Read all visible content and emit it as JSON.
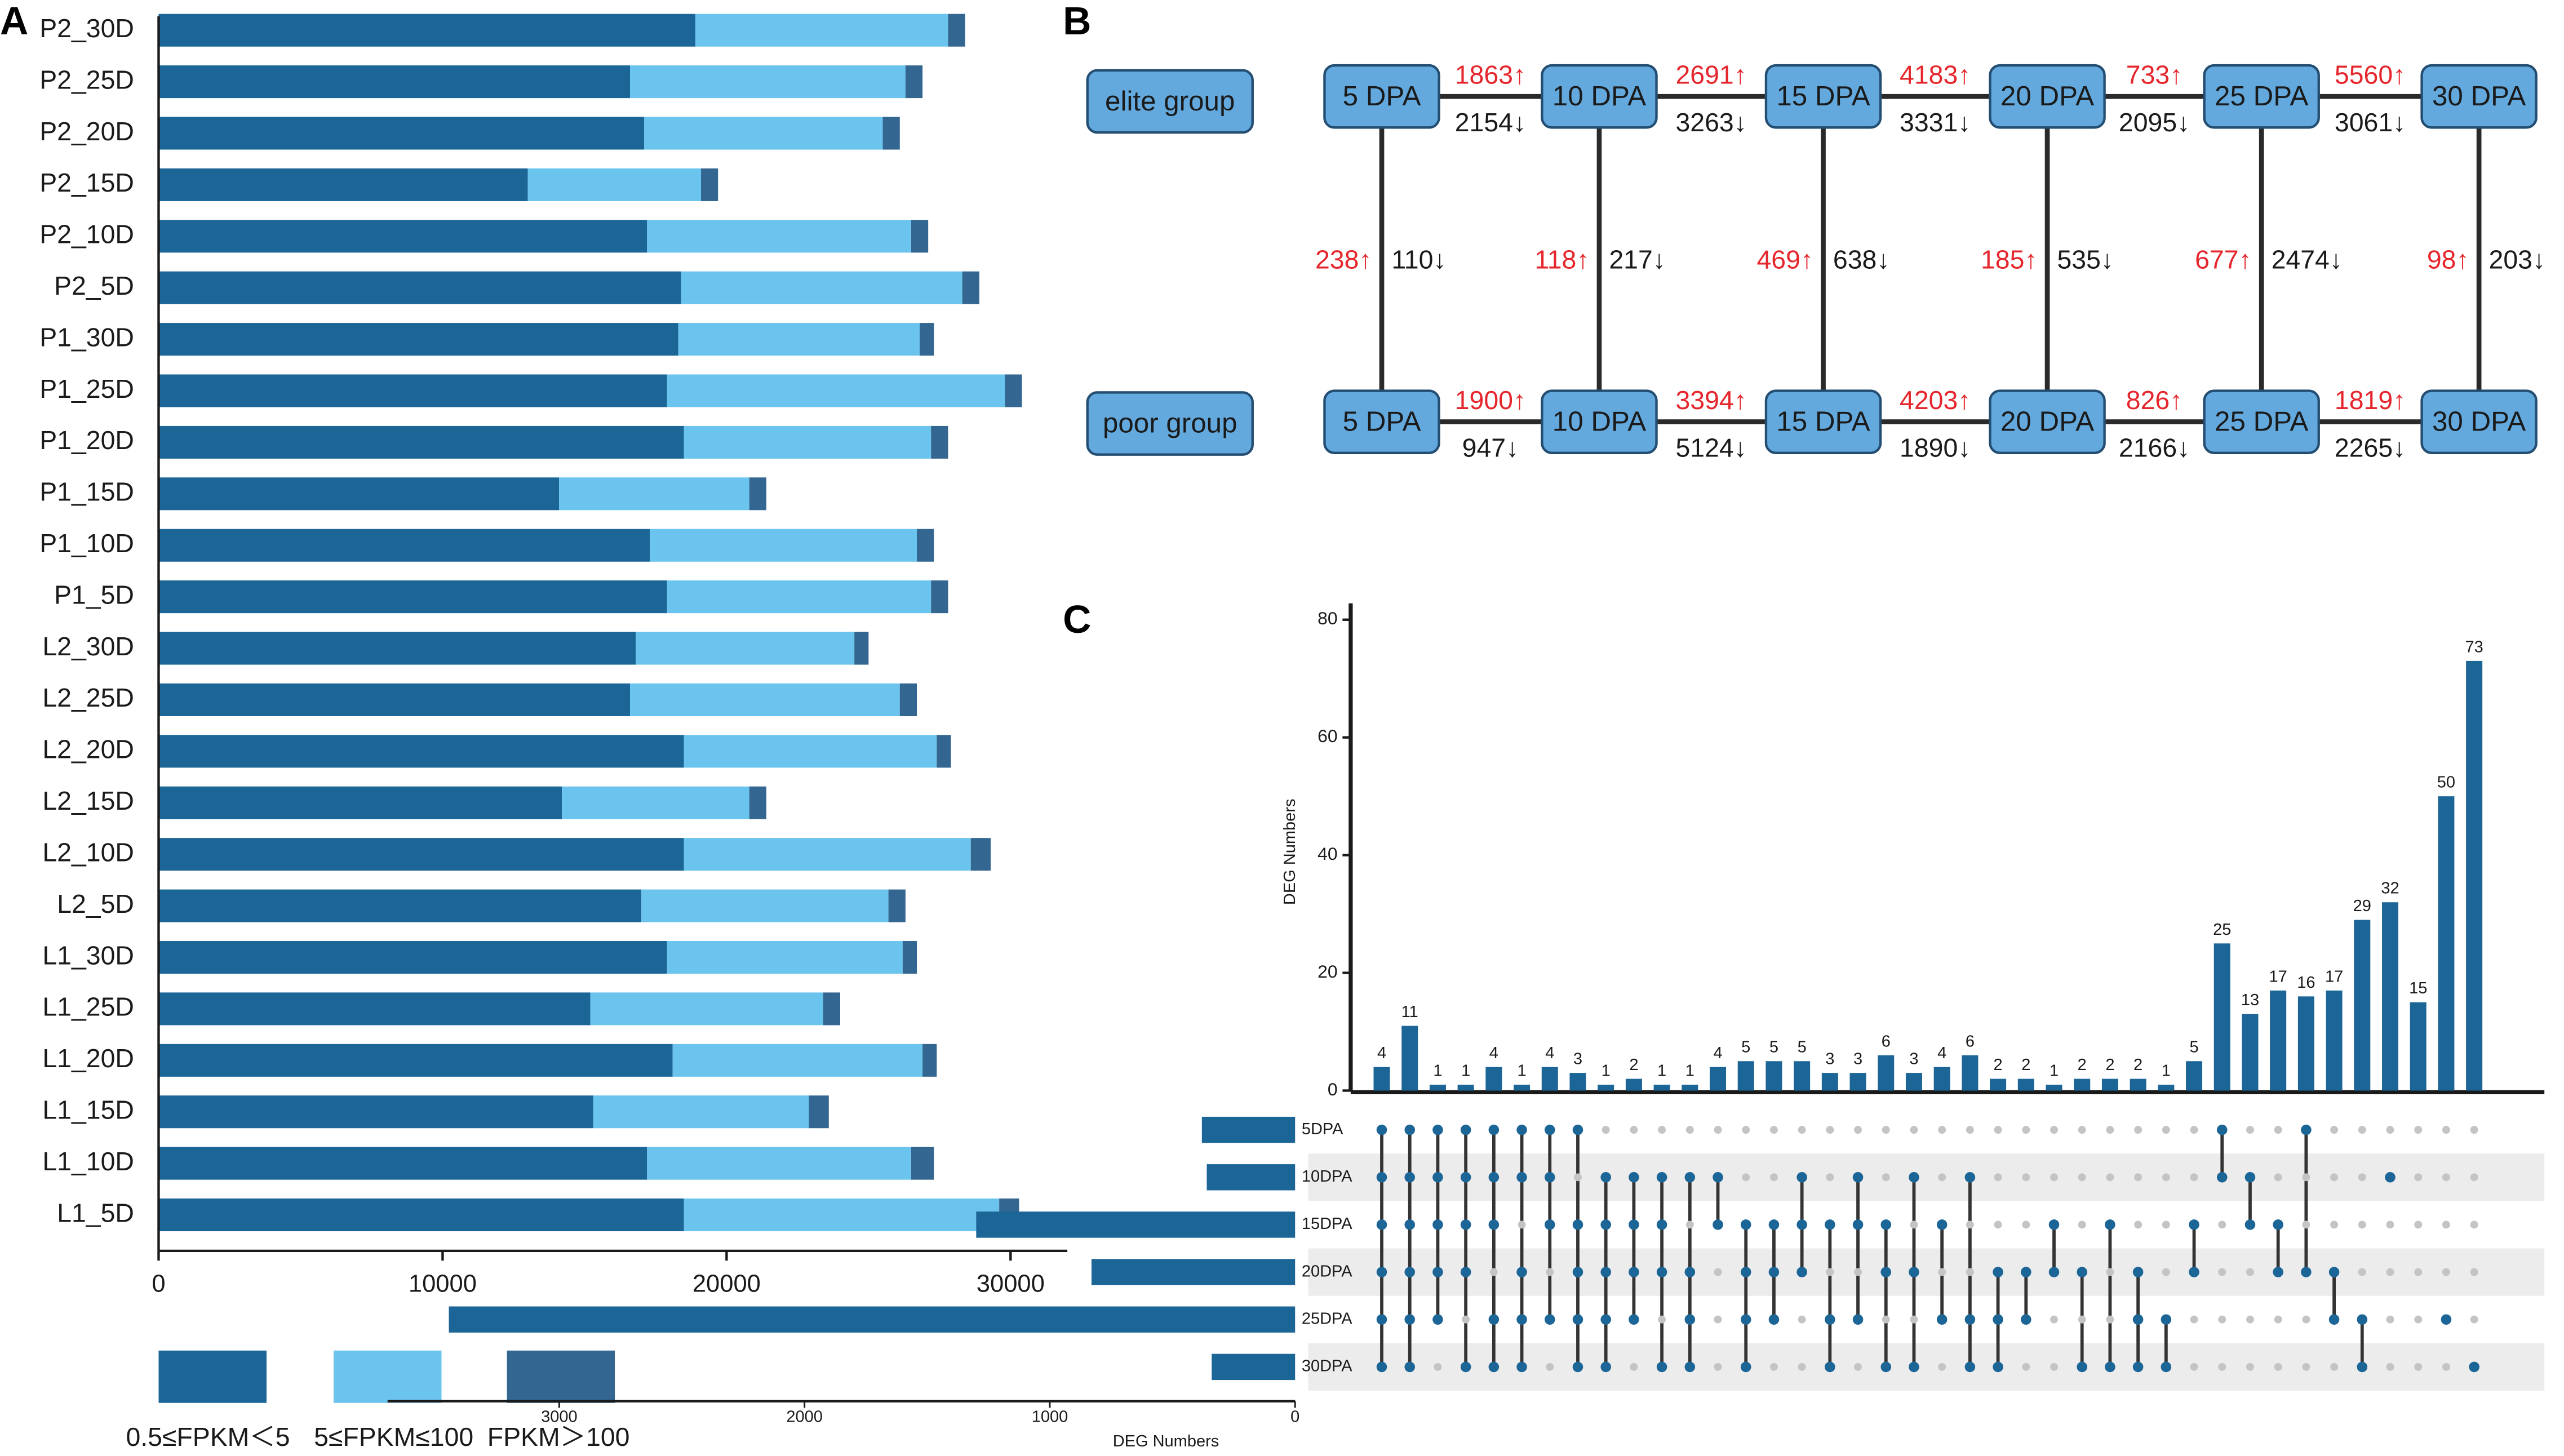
{
  "panel_letters": {
    "a": "A",
    "b": "B",
    "c": "C"
  },
  "colors": {
    "low": "#1b6597",
    "mid": "#6ac4ee",
    "high": "#336690",
    "node_fill": "#63a9dd",
    "node_stroke": "#244d72",
    "up": "#e5262c",
    "down": "#1a1a1a",
    "upset_bar": "#1b6597",
    "dot_on": "#1b6597",
    "dot_off": "#c4c4c4",
    "stripe": "#ececec"
  },
  "chart_data": [
    {
      "type": "bar",
      "orientation": "horizontal",
      "stacked": true,
      "panel": "A",
      "categories": [
        "P2_30D",
        "P2_25D",
        "P2_20D",
        "P2_15D",
        "P2_10D",
        "P2_5D",
        "P1_30D",
        "P1_25D",
        "P1_20D",
        "P1_15D",
        "P1_10D",
        "P1_5D",
        "L2_30D",
        "L2_25D",
        "L2_20D",
        "L2_15D",
        "L2_10D",
        "L2_5D",
        "L1_30D",
        "L1_25D",
        "L1_20D",
        "L1_15D",
        "L1_10D",
        "L1_5D"
      ],
      "series": [
        {
          "name": "0.5≤FPKM＜5",
          "color": "#1b6597",
          "values": [
            18900,
            16600,
            17100,
            13000,
            17200,
            18400,
            18300,
            17900,
            18500,
            14100,
            17300,
            17900,
            16800,
            16600,
            18500,
            14200,
            18500,
            17000,
            17900,
            15200,
            18100,
            15300,
            17200,
            18500
          ]
        },
        {
          "name": "5≤FPKM≤100",
          "color": "#6ac4ee",
          "values": [
            8900,
            9700,
            8400,
            6100,
            9300,
            9900,
            8500,
            11900,
            8700,
            6700,
            9400,
            9300,
            7700,
            9500,
            8900,
            6600,
            10100,
            8700,
            8300,
            8200,
            8800,
            7600,
            9300,
            11100
          ]
        },
        {
          "name": "FPKM＞100",
          "color": "#336690",
          "values": [
            600,
            600,
            600,
            600,
            600,
            600,
            500,
            600,
            600,
            600,
            600,
            600,
            500,
            600,
            500,
            600,
            700,
            600,
            500,
            600,
            500,
            700,
            800,
            700
          ]
        }
      ],
      "xlim": [
        0,
        32000
      ],
      "xticks": [
        "0",
        "10000",
        "20000",
        "30000"
      ],
      "xtick_values": [
        0,
        10000,
        20000,
        30000
      ],
      "legend": [
        "0.5≤FPKM＜5",
        "5≤FPKM≤100",
        "FPKM＞100"
      ],
      "title": "",
      "xlabel": "",
      "ylabel": ""
    },
    {
      "type": "diagram",
      "panel": "B",
      "groups": [
        "elite group",
        "poor group"
      ],
      "stages": [
        "5 DPA",
        "10 DPA",
        "15 DPA",
        "20 DPA",
        "25 DPA",
        "30 DPA"
      ],
      "elite_transitions": [
        {
          "up": "1863↑",
          "down": "2154↓"
        },
        {
          "up": "2691↑",
          "down": "3263↓"
        },
        {
          "up": "4183↑",
          "down": "3331↓"
        },
        {
          "up": "733↑",
          "down": "2095↓"
        },
        {
          "up": "5560↑",
          "down": "3061↓"
        }
      ],
      "poor_transitions": [
        {
          "up": "1900↑",
          "down": "947↓"
        },
        {
          "up": "3394↑",
          "down": "5124↓"
        },
        {
          "up": "4203↑",
          "down": "1890↓"
        },
        {
          "up": "826↑",
          "down": "2166↓"
        },
        {
          "up": "1819↑",
          "down": "2265↓"
        }
      ],
      "between_groups": [
        {
          "up": "238↑",
          "down": "110↓"
        },
        {
          "up": "118↑",
          "down": "217↓"
        },
        {
          "up": "469↑",
          "down": "638↓"
        },
        {
          "up": "185↑",
          "down": "535↓"
        },
        {
          "up": "677↑",
          "down": "2474↓"
        },
        {
          "up": "98↑",
          "down": "203↓"
        }
      ]
    },
    {
      "type": "upset",
      "panel": "C",
      "ylabel": "DEG Numbers",
      "ylim": [
        0,
        80
      ],
      "yticks": [
        0,
        20,
        40,
        60,
        80
      ],
      "intersection_values": [
        4,
        11,
        1,
        1,
        4,
        1,
        4,
        3,
        1,
        2,
        1,
        1,
        4,
        5,
        5,
        5,
        3,
        3,
        6,
        3,
        4,
        6,
        2,
        2,
        1,
        2,
        2,
        2,
        1,
        5,
        25,
        13,
        17,
        16,
        17,
        29,
        32,
        15,
        50,
        73
      ],
      "sets": [
        "5DPA",
        "10DPA",
        "15DPA",
        "20DPA",
        "25DPA",
        "30DPA"
      ],
      "set_sizes": [
        380,
        360,
        1300,
        830,
        3450,
        340
      ],
      "set_xlabel": "DEG Numbers",
      "set_xlim": [
        0,
        3700
      ],
      "set_xticks": [
        3000,
        2000,
        1000,
        0
      ],
      "matrix": [
        [
          1,
          1,
          1,
          1,
          1,
          1
        ],
        [
          1,
          1,
          1,
          1,
          1,
          1
        ],
        [
          1,
          1,
          1,
          1,
          1,
          0
        ],
        [
          1,
          1,
          1,
          1,
          0,
          1
        ],
        [
          1,
          1,
          1,
          0,
          1,
          1
        ],
        [
          1,
          1,
          0,
          1,
          1,
          1
        ],
        [
          1,
          1,
          1,
          0,
          1,
          0
        ],
        [
          1,
          0,
          1,
          1,
          1,
          1
        ],
        [
          0,
          1,
          1,
          1,
          1,
          1
        ],
        [
          0,
          1,
          1,
          1,
          1,
          0
        ],
        [
          0,
          1,
          1,
          1,
          0,
          1
        ],
        [
          0,
          1,
          0,
          1,
          1,
          1
        ],
        [
          0,
          1,
          1,
          0,
          0,
          0
        ],
        [
          0,
          0,
          1,
          1,
          1,
          1
        ],
        [
          0,
          0,
          1,
          1,
          1,
          0
        ],
        [
          0,
          1,
          1,
          1,
          0,
          0
        ],
        [
          0,
          0,
          1,
          0,
          1,
          1
        ],
        [
          0,
          1,
          1,
          0,
          1,
          0
        ],
        [
          0,
          0,
          1,
          1,
          0,
          1
        ],
        [
          0,
          1,
          0,
          1,
          0,
          1
        ],
        [
          0,
          0,
          1,
          0,
          1,
          0
        ],
        [
          0,
          1,
          0,
          0,
          1,
          1
        ],
        [
          0,
          0,
          0,
          1,
          1,
          1
        ],
        [
          0,
          0,
          0,
          1,
          1,
          0
        ],
        [
          0,
          0,
          1,
          1,
          0,
          0
        ],
        [
          0,
          0,
          0,
          1,
          0,
          1
        ],
        [
          0,
          0,
          1,
          0,
          0,
          1
        ],
        [
          0,
          0,
          0,
          1,
          1,
          1
        ],
        [
          0,
          0,
          0,
          0,
          1,
          1
        ],
        [
          0,
          0,
          1,
          1,
          0,
          0
        ],
        [
          1,
          1,
          0,
          0,
          0,
          0
        ],
        [
          0,
          1,
          1,
          0,
          0,
          0
        ],
        [
          0,
          0,
          1,
          1,
          0,
          0
        ],
        [
          1,
          0,
          0,
          1,
          0,
          0
        ],
        [
          0,
          0,
          0,
          1,
          1,
          0
        ],
        [
          0,
          0,
          0,
          0,
          1,
          1
        ],
        [
          0,
          1,
          0,
          0,
          0,
          0
        ],
        [
          0,
          0,
          0,
          0,
          0,
          0
        ],
        [
          0,
          0,
          0,
          0,
          1,
          0
        ],
        [
          0,
          0,
          0,
          0,
          0,
          1
        ]
      ]
    }
  ]
}
